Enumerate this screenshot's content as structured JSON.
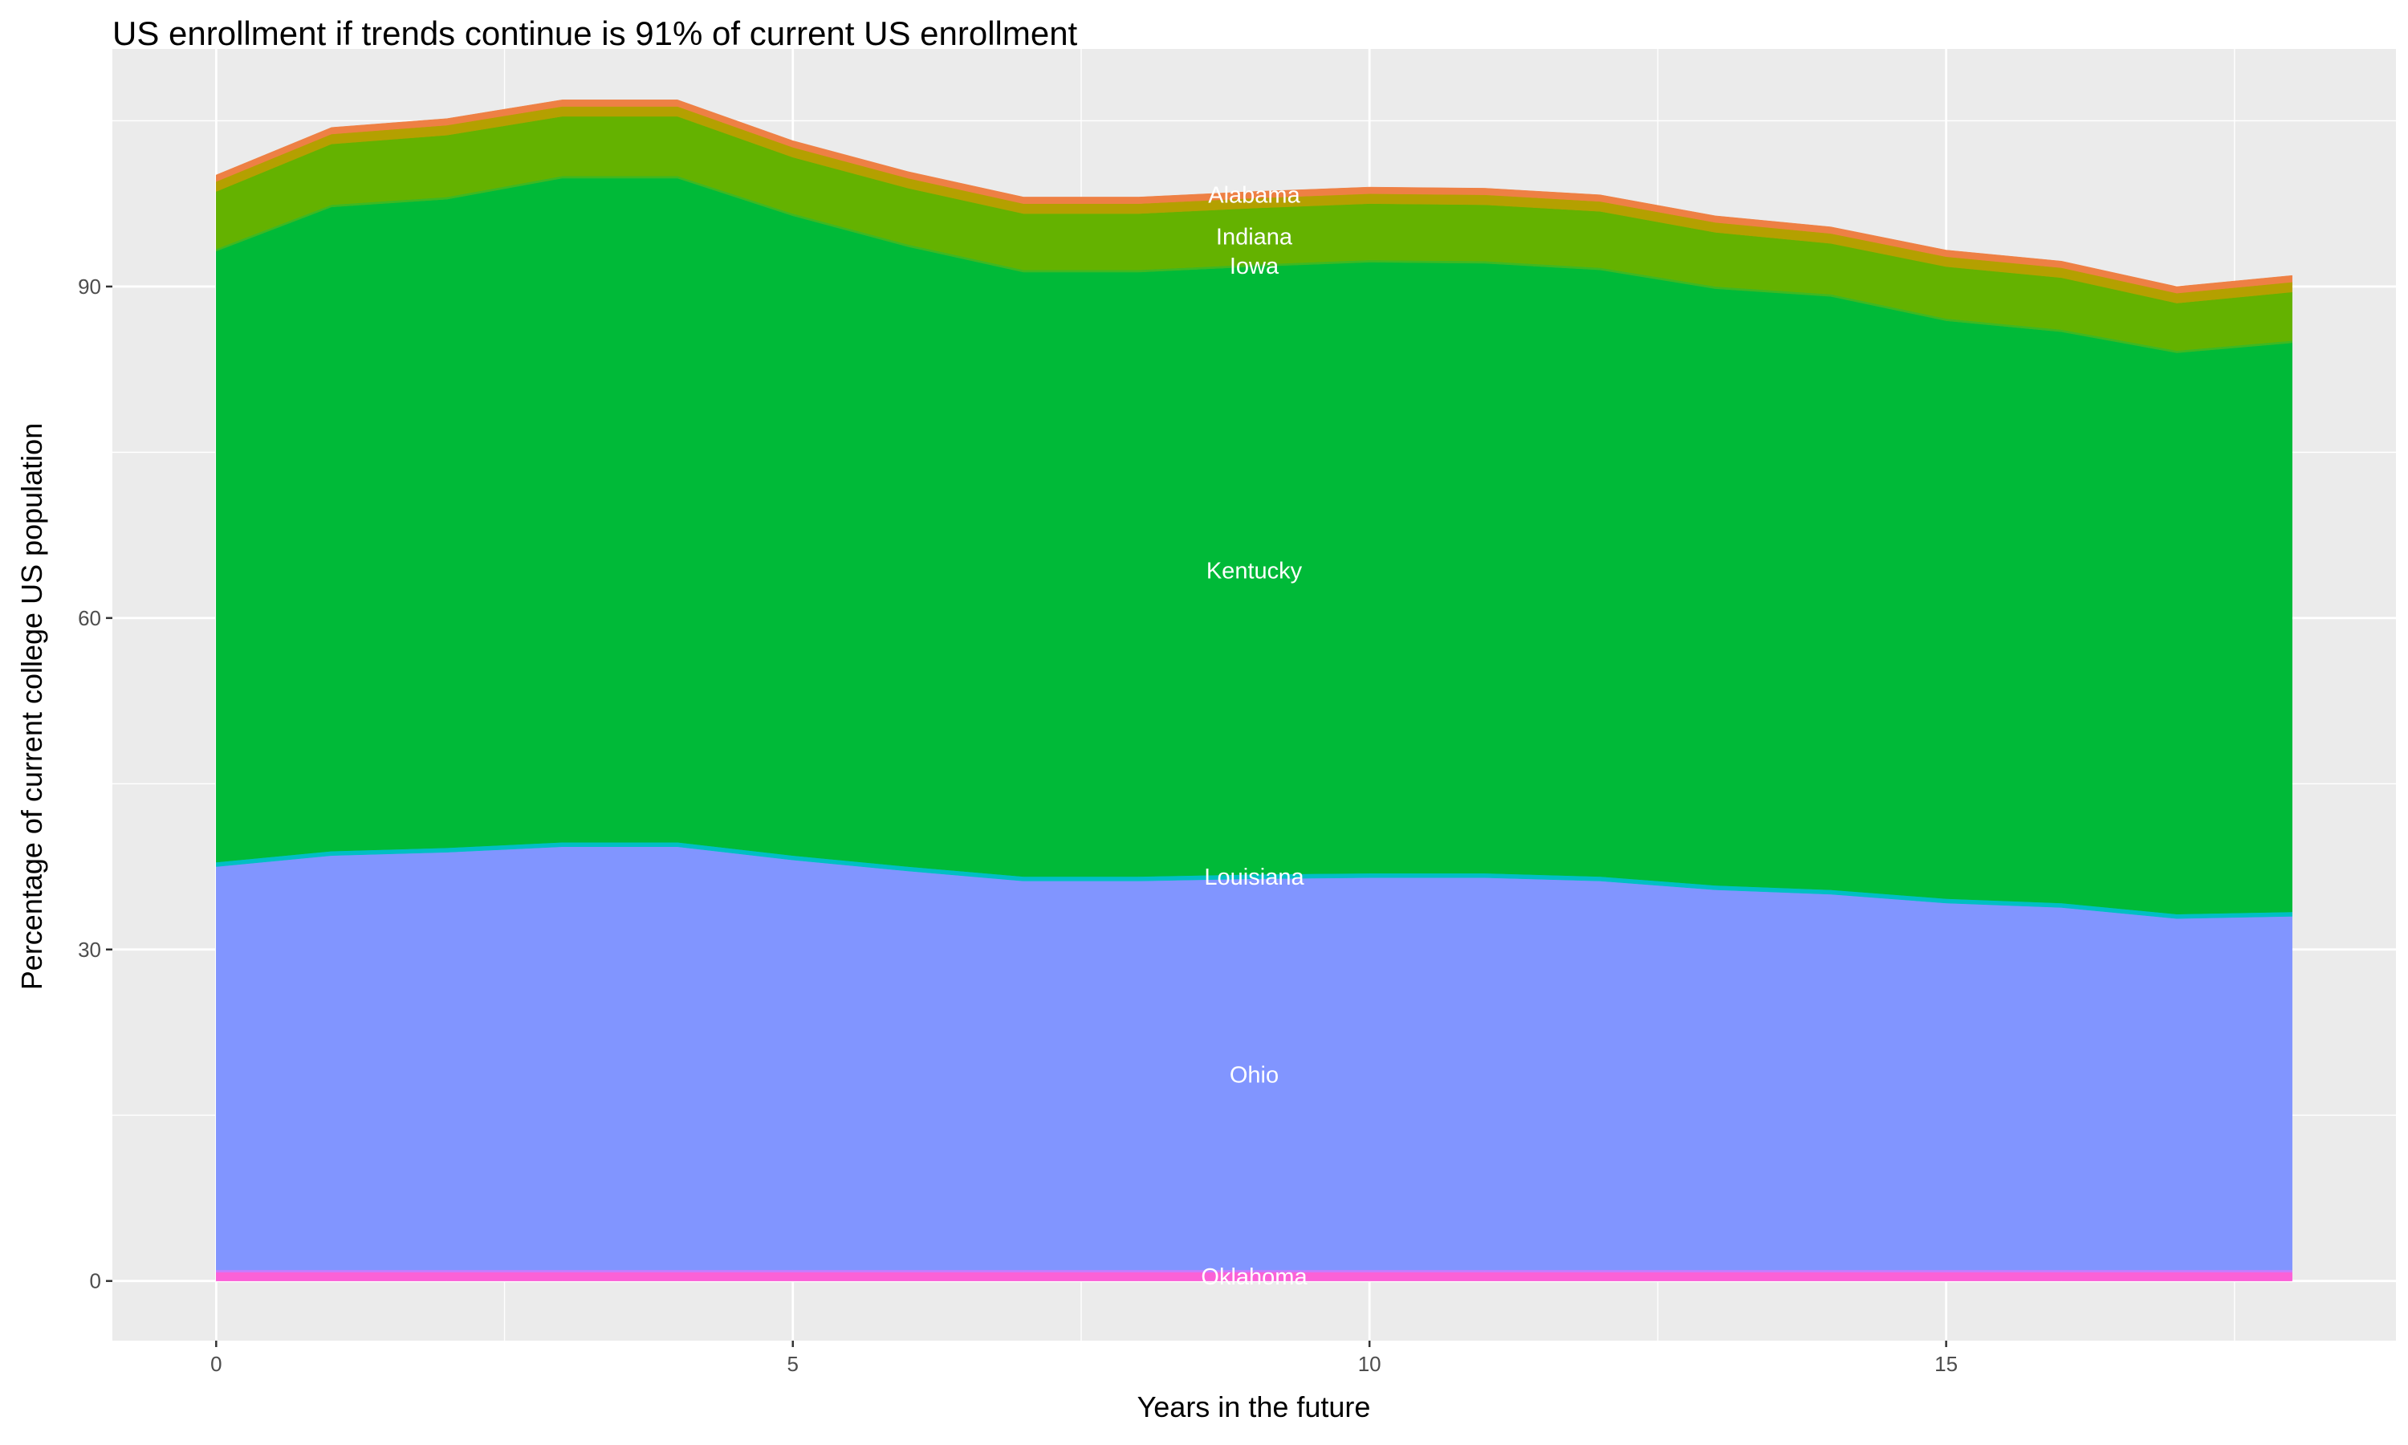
{
  "chart_data": {
    "type": "area",
    "stacked": true,
    "title": "US enrollment if trends continue is 91% of current US enrollment",
    "xlabel": "Years in the future",
    "ylabel": "Percentage of current college US population",
    "xlim": [
      -0.9,
      18.9
    ],
    "ylim": [
      -5.4,
      111.5
    ],
    "xticks": [
      0,
      5,
      10,
      15
    ],
    "yticks": [
      0,
      30,
      60,
      90
    ],
    "grid": true,
    "legend": "none",
    "label_x": 9,
    "x": [
      0,
      1,
      2,
      3,
      4,
      5,
      6,
      7,
      8,
      9,
      10,
      11,
      12,
      13,
      14,
      15,
      16,
      17,
      18
    ],
    "series": [
      {
        "name": "Oklahoma",
        "color": "#FB61D7",
        "values": [
          0.8,
          0.8,
          0.8,
          0.8,
          0.8,
          0.8,
          0.8,
          0.8,
          0.8,
          0.8,
          0.8,
          0.8,
          0.8,
          0.8,
          0.8,
          0.8,
          0.8,
          0.8,
          0.8
        ]
      },
      {
        "color": "#C77CFF",
        "values": [
          0.2,
          0.2,
          0.2,
          0.2,
          0.2,
          0.2,
          0.2,
          0.2,
          0.2,
          0.2,
          0.2,
          0.2,
          0.2,
          0.2,
          0.2,
          0.2,
          0.2,
          0.2,
          0.2
        ]
      },
      {
        "name": "Ohio",
        "color": "#8195FF",
        "values": [
          36.5,
          37.5,
          37.8,
          38.3,
          38.3,
          37.1,
          36.1,
          35.2,
          35.2,
          35.4,
          35.5,
          35.5,
          35.2,
          34.4,
          34.0,
          33.2,
          32.8,
          31.8,
          32.0
        ]
      },
      {
        "name": "Louisiana",
        "color": "#00BFC4",
        "values": [
          0.4,
          0.4,
          0.4,
          0.4,
          0.4,
          0.4,
          0.4,
          0.4,
          0.4,
          0.4,
          0.4,
          0.4,
          0.4,
          0.4,
          0.4,
          0.4,
          0.4,
          0.4,
          0.4
        ]
      },
      {
        "name": "Kentucky",
        "color": "#00BA38",
        "values": [
          55.3,
          58.3,
          58.7,
          60.1,
          60.1,
          57.9,
          56.1,
          54.7,
          54.7,
          55.0,
          55.3,
          55.2,
          54.9,
          54.0,
          53.7,
          52.3,
          51.7,
          50.8,
          51.5
        ]
      },
      {
        "name": "Iowa",
        "color": "#3DB822",
        "values": [
          0.2,
          0.2,
          0.2,
          0.2,
          0.2,
          0.2,
          0.2,
          0.2,
          0.2,
          0.2,
          0.2,
          0.2,
          0.2,
          0.2,
          0.2,
          0.2,
          0.2,
          0.2,
          0.2
        ]
      },
      {
        "name": "Indiana",
        "color": "#64B200",
        "values": [
          5.2,
          5.5,
          5.6,
          5.4,
          5.4,
          5.1,
          5.1,
          5.1,
          5.1,
          5.1,
          5.1,
          5.1,
          5.1,
          4.9,
          4.6,
          4.7,
          4.7,
          4.3,
          4.4
        ]
      },
      {
        "color": "#B4A000",
        "values": [
          0.9,
          0.9,
          0.9,
          0.9,
          0.9,
          0.9,
          0.9,
          0.9,
          0.9,
          0.9,
          0.9,
          0.9,
          0.9,
          0.9,
          0.9,
          0.9,
          0.9,
          0.9,
          0.9
        ]
      },
      {
        "name": "Alabama",
        "color": "#EE8044",
        "values": [
          0.6,
          0.6,
          0.6,
          0.6,
          0.6,
          0.6,
          0.6,
          0.6,
          0.6,
          0.6,
          0.6,
          0.6,
          0.6,
          0.6,
          0.6,
          0.6,
          0.6,
          0.6,
          0.6
        ]
      }
    ],
    "panel_background": "#EBEBEB",
    "grid_color": "#FFFFFF"
  }
}
